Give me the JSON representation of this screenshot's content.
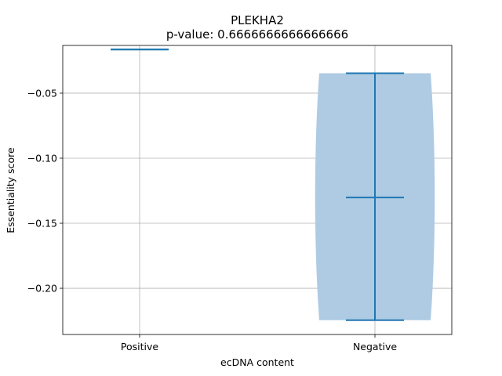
{
  "chart_data": {
    "type": "violin",
    "title": "PLEKHA2",
    "subtitle": "p-value: 0.6666666666666666",
    "xlabel": "ecDNA content",
    "ylabel": "Essentiality score",
    "categories": [
      "Positive",
      "Negative"
    ],
    "ylim": [
      -0.2355,
      -0.0133
    ],
    "yticks": [
      -0.05,
      -0.1,
      -0.15,
      -0.2
    ],
    "ytick_labels": [
      "−0.05",
      "−0.10",
      "−0.15",
      "−0.20"
    ],
    "grid": true,
    "colors": {
      "body": "#aecbe3",
      "line": "#1f77b4",
      "grid": "#b0b0b0"
    },
    "violins": [
      {
        "category": "Positive",
        "min": -0.0164,
        "max": -0.0164,
        "median": -0.0164,
        "width": 0.0
      },
      {
        "category": "Negative",
        "min": -0.2245,
        "max": -0.0347,
        "median": -0.1302,
        "width": 1.0
      }
    ]
  }
}
